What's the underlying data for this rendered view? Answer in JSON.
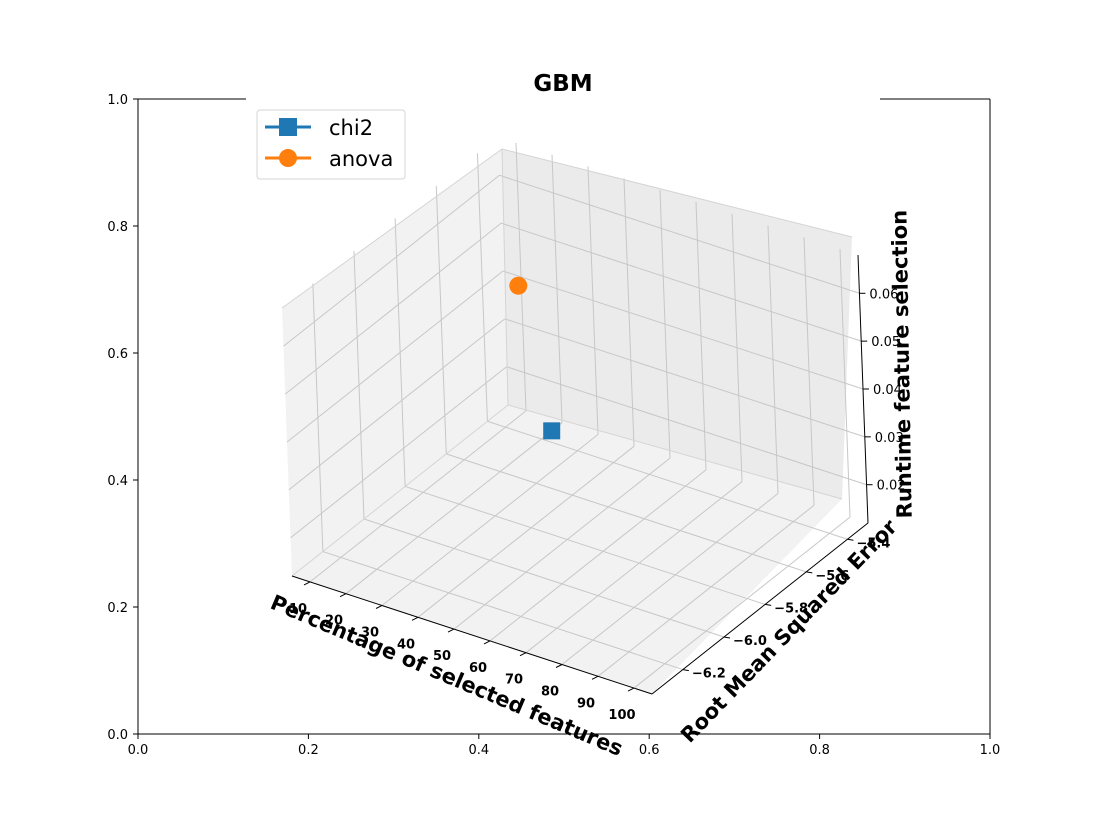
{
  "chart_data": {
    "type": "scatter",
    "title": "GBM",
    "axes_2d": {
      "xlim": [
        0.0,
        1.0
      ],
      "ylim": [
        0.0,
        1.0
      ],
      "x_ticks": [
        "0.0",
        "0.2",
        "0.4",
        "0.6",
        "0.8",
        "1.0"
      ],
      "y_ticks": [
        "0.0",
        "0.2",
        "0.4",
        "0.6",
        "0.8",
        "1.0"
      ]
    },
    "axes_3d": {
      "xlabel": "Percentage of selected features",
      "ylabel": "Root Mean Squared Error",
      "zlabel": "Runtime feature selection",
      "x_ticks": [
        "10",
        "20",
        "30",
        "40",
        "50",
        "60",
        "70",
        "80",
        "90",
        "100"
      ],
      "y_ticks": [
        "−6.2",
        "−6.0",
        "−5.8",
        "−5.6",
        "−5.4"
      ],
      "z_ticks": [
        "0.02",
        "0.03",
        "0.04",
        "0.05",
        "0.06"
      ],
      "grid": true
    },
    "legend": {
      "placement": "upper-left"
    },
    "series": [
      {
        "name": "chi2",
        "color": "#1f77b4",
        "marker": "square",
        "x": 20,
        "y": -5.35,
        "z": 0.012
      },
      {
        "name": "anova",
        "color": "#ff7f0e",
        "marker": "circle",
        "x": 30,
        "y": -5.65,
        "z": 0.055
      }
    ]
  }
}
